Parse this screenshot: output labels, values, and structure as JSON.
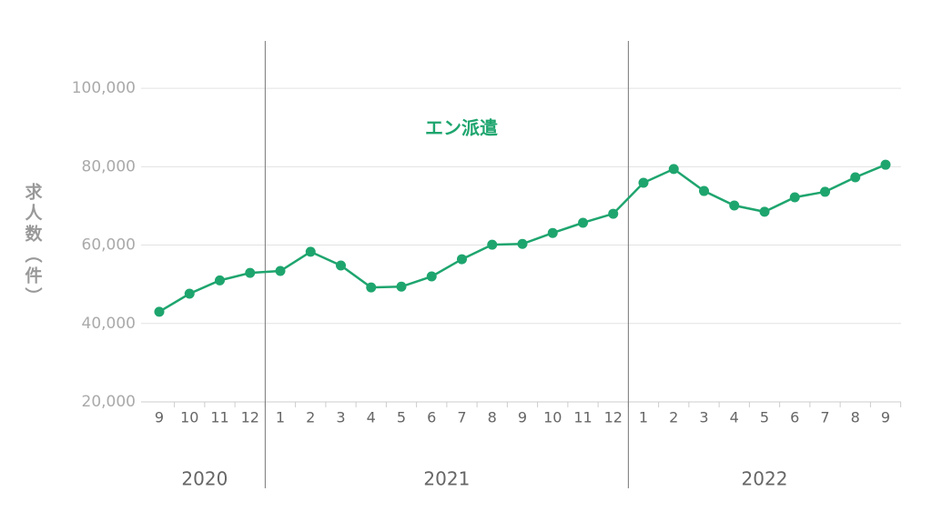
{
  "chart_data": {
    "type": "line",
    "y_label": "求人数（件）",
    "categories": [
      9,
      10,
      11,
      12,
      1,
      2,
      3,
      4,
      5,
      6,
      7,
      8,
      9,
      10,
      11,
      12,
      1,
      2,
      3,
      4,
      5,
      6,
      7,
      8,
      9
    ],
    "years": [
      "2020",
      "2021",
      "2022"
    ],
    "series": [
      {
        "name": "エン派遣",
        "color": "#1ea56e",
        "values": [
          43000,
          47600,
          51000,
          52900,
          53400,
          58300,
          54800,
          49200,
          49400,
          52000,
          56400,
          60100,
          60300,
          63100,
          65700,
          68000,
          75900,
          79400,
          73800,
          70100,
          68500,
          72200,
          73600,
          77300,
          80500
        ]
      }
    ],
    "ylim": [
      20000,
      110000
    ],
    "yticks": [
      {
        "value": 20000,
        "label": "20,000"
      },
      {
        "value": 40000,
        "label": "40,000"
      },
      {
        "value": 60000,
        "label": "60,000"
      },
      {
        "value": 80000,
        "label": "80,000"
      },
      {
        "value": 100000,
        "label": "100,000"
      }
    ],
    "grid": true
  }
}
